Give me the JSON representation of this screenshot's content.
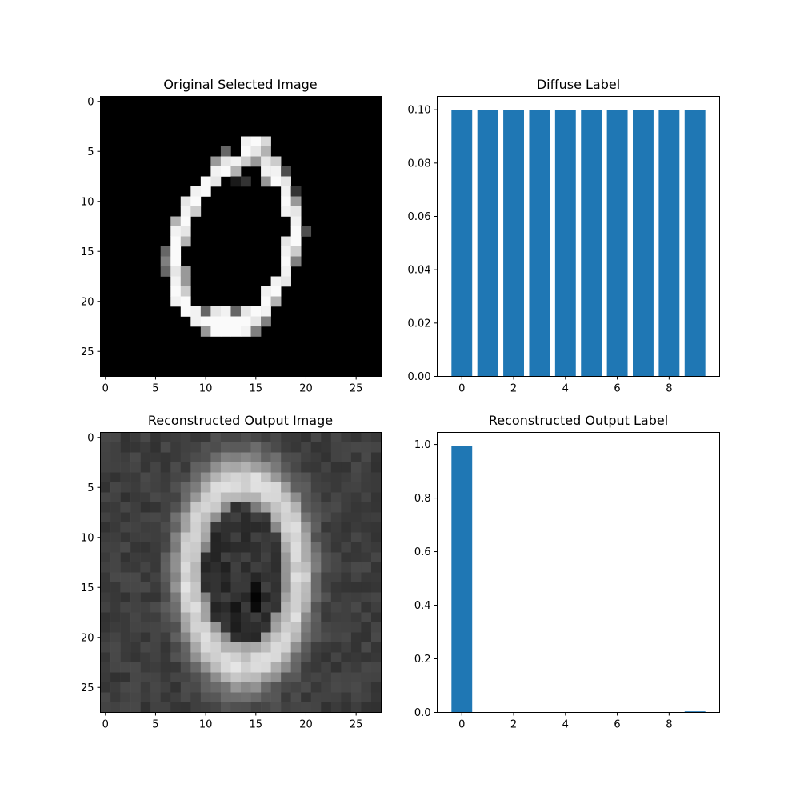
{
  "chart_data": [
    {
      "type": "heatmap",
      "title": "Original Selected Image",
      "colormap": "gray",
      "shape": [
        28,
        28
      ],
      "xlim": [
        -0.5,
        27.5
      ],
      "ylim": [
        27.5,
        -0.5
      ],
      "x_ticks": [
        0,
        5,
        10,
        15,
        20,
        25
      ],
      "y_ticks": [
        0,
        5,
        10,
        15,
        20,
        25
      ],
      "pixels": [
        [
          4,
          14,
          0.95
        ],
        [
          5,
          14,
          0.98
        ],
        [
          4,
          15,
          0.98
        ],
        [
          5,
          15,
          0.9
        ],
        [
          4,
          16,
          0.85
        ],
        [
          5,
          16,
          0.7
        ],
        [
          5,
          12,
          0.4
        ],
        [
          6,
          11,
          0.6
        ],
        [
          6,
          12,
          0.9
        ],
        [
          6,
          13,
          0.95
        ],
        [
          6,
          14,
          0.8
        ],
        [
          6,
          15,
          0.6
        ],
        [
          6,
          16,
          0.9
        ],
        [
          6,
          17,
          0.8
        ],
        [
          7,
          11,
          0.95
        ],
        [
          7,
          12,
          0.98
        ],
        [
          7,
          13,
          0.7
        ],
        [
          7,
          16,
          0.95
        ],
        [
          7,
          17,
          0.95
        ],
        [
          7,
          18,
          0.3
        ],
        [
          8,
          10,
          0.98
        ],
        [
          8,
          11,
          0.9
        ],
        [
          8,
          13,
          0.1
        ],
        [
          8,
          14,
          0.2
        ],
        [
          8,
          16,
          0.6
        ],
        [
          8,
          17,
          0.98
        ],
        [
          8,
          18,
          0.9
        ],
        [
          9,
          9,
          0.95
        ],
        [
          9,
          10,
          0.98
        ],
        [
          9,
          18,
          0.95
        ],
        [
          9,
          19,
          0.2
        ],
        [
          10,
          8,
          0.9
        ],
        [
          10,
          9,
          0.98
        ],
        [
          10,
          18,
          0.98
        ],
        [
          10,
          19,
          0.6
        ],
        [
          11,
          8,
          0.95
        ],
        [
          11,
          9,
          0.8
        ],
        [
          11,
          18,
          0.95
        ],
        [
          11,
          19,
          0.9
        ],
        [
          12,
          7,
          0.7
        ],
        [
          12,
          8,
          0.98
        ],
        [
          12,
          19,
          0.95
        ],
        [
          13,
          7,
          0.95
        ],
        [
          13,
          8,
          0.9
        ],
        [
          13,
          19,
          0.98
        ],
        [
          13,
          20,
          0.3
        ],
        [
          14,
          7,
          0.98
        ],
        [
          14,
          8,
          0.7
        ],
        [
          14,
          18,
          0.9
        ],
        [
          14,
          19,
          0.98
        ],
        [
          15,
          6,
          0.4
        ],
        [
          15,
          7,
          0.98
        ],
        [
          15,
          18,
          0.95
        ],
        [
          15,
          19,
          0.8
        ],
        [
          16,
          6,
          0.5
        ],
        [
          16,
          7,
          0.98
        ],
        [
          16,
          18,
          0.98
        ],
        [
          16,
          19,
          0.5
        ],
        [
          17,
          6,
          0.4
        ],
        [
          17,
          7,
          0.9
        ],
        [
          17,
          8,
          0.6
        ],
        [
          17,
          18,
          0.95
        ],
        [
          18,
          7,
          0.95
        ],
        [
          18,
          8,
          0.6
        ],
        [
          18,
          17,
          0.95
        ],
        [
          18,
          18,
          0.9
        ],
        [
          19,
          7,
          0.98
        ],
        [
          19,
          8,
          0.8
        ],
        [
          19,
          16,
          0.95
        ],
        [
          19,
          17,
          0.98
        ],
        [
          20,
          7,
          0.95
        ],
        [
          20,
          8,
          0.98
        ],
        [
          20,
          16,
          0.98
        ],
        [
          20,
          17,
          0.7
        ],
        [
          21,
          8,
          0.98
        ],
        [
          21,
          9,
          0.95
        ],
        [
          21,
          10,
          0.4
        ],
        [
          21,
          11,
          0.9
        ],
        [
          21,
          12,
          0.95
        ],
        [
          21,
          13,
          0.4
        ],
        [
          21,
          14,
          0.9
        ],
        [
          21,
          15,
          0.98
        ],
        [
          21,
          16,
          0.95
        ],
        [
          22,
          9,
          0.95
        ],
        [
          22,
          10,
          0.98
        ],
        [
          22,
          11,
          0.98
        ],
        [
          22,
          12,
          0.98
        ],
        [
          22,
          13,
          0.98
        ],
        [
          22,
          14,
          0.98
        ],
        [
          22,
          15,
          0.9
        ],
        [
          22,
          16,
          0.5
        ],
        [
          23,
          10,
          0.6
        ],
        [
          23,
          11,
          0.98
        ],
        [
          23,
          12,
          0.98
        ],
        [
          23,
          13,
          0.98
        ],
        [
          23,
          14,
          0.95
        ],
        [
          23,
          15,
          0.5
        ]
      ]
    },
    {
      "type": "bar",
      "title": "Diffuse Label",
      "categories": [
        0,
        1,
        2,
        3,
        4,
        5,
        6,
        7,
        8,
        9
      ],
      "values": [
        0.1,
        0.1,
        0.1,
        0.1,
        0.1,
        0.1,
        0.1,
        0.1,
        0.1,
        0.1
      ],
      "xlim": [
        -0.95,
        9.95
      ],
      "ylim": [
        0,
        0.105
      ],
      "x_ticks": [
        0,
        2,
        4,
        6,
        8
      ],
      "x_tick_labels": [
        "0",
        "2",
        "4",
        "6",
        "8"
      ],
      "y_ticks": [
        0,
        0.02,
        0.04,
        0.06,
        0.08,
        0.1
      ],
      "y_tick_labels": [
        "0.00",
        "0.02",
        "0.04",
        "0.06",
        "0.08",
        "0.10"
      ],
      "bar_color": "#1f77b4"
    },
    {
      "type": "heatmap",
      "title": "Reconstructed Output Image",
      "colormap": "gray",
      "shape": [
        28,
        28
      ],
      "xlim": [
        -0.5,
        27.5
      ],
      "ylim": [
        27.5,
        -0.5
      ],
      "x_ticks": [
        0,
        5,
        10,
        15,
        20,
        25
      ],
      "y_ticks": [
        0,
        5,
        10,
        15,
        20,
        25
      ],
      "ring": {
        "cx": 13.8,
        "cy": 13.6,
        "rx": 5.6,
        "ry": 9.4,
        "thickness": 1.7
      },
      "dark_spots": [
        [
          11,
          11,
          0.14
        ],
        [
          14,
          12,
          0.12
        ],
        [
          16,
          15,
          0.0
        ],
        [
          18,
          13,
          0.08
        ],
        [
          9,
          14,
          0.15
        ]
      ]
    },
    {
      "type": "bar",
      "title": "Reconstructed Output Label",
      "categories": [
        0,
        1,
        2,
        3,
        4,
        5,
        6,
        7,
        8,
        9
      ],
      "values": [
        0.995,
        0.0003,
        0.0005,
        0.0003,
        0.0004,
        0.0003,
        0.0004,
        0.0003,
        0.0005,
        0.004
      ],
      "xlim": [
        -0.95,
        9.95
      ],
      "ylim": [
        0,
        1.045
      ],
      "x_ticks": [
        0,
        2,
        4,
        6,
        8
      ],
      "x_tick_labels": [
        "0",
        "2",
        "4",
        "6",
        "8"
      ],
      "y_ticks": [
        0,
        0.2,
        0.4,
        0.6,
        0.8,
        1.0
      ],
      "y_tick_labels": [
        "0.0",
        "0.2",
        "0.4",
        "0.6",
        "0.8",
        "1.0"
      ],
      "bar_color": "#1f77b4"
    }
  ]
}
